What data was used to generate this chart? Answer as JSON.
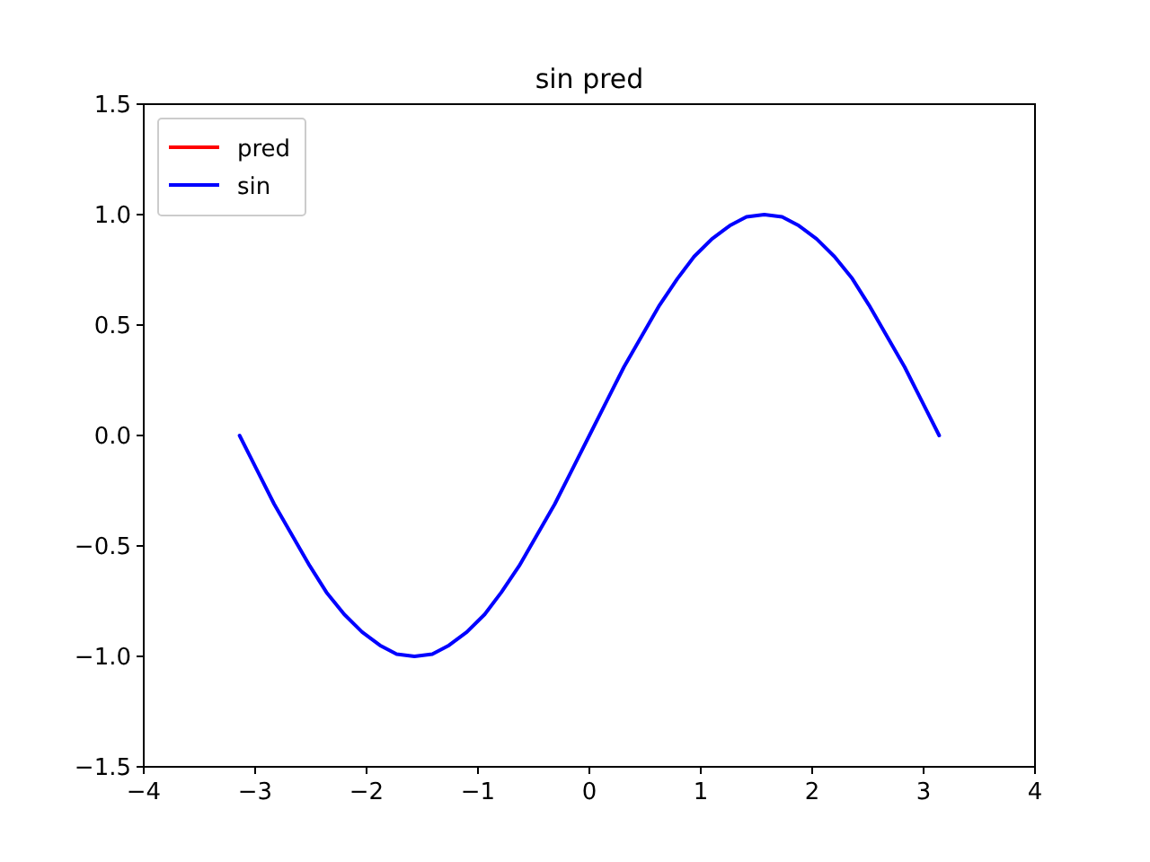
{
  "chart_data": {
    "type": "line",
    "title": "sin pred",
    "x": [
      -3.14,
      -2.98,
      -2.83,
      -2.67,
      -2.51,
      -2.36,
      -2.2,
      -2.04,
      -1.88,
      -1.73,
      -1.57,
      -1.41,
      -1.26,
      -1.1,
      -0.94,
      -0.79,
      -0.63,
      -0.47,
      -0.31,
      -0.16,
      0,
      0.16,
      0.31,
      0.47,
      0.63,
      0.79,
      0.94,
      1.1,
      1.26,
      1.41,
      1.57,
      1.73,
      1.88,
      2.04,
      2.2,
      2.36,
      2.51,
      2.67,
      2.83,
      2.98,
      3.14
    ],
    "series": [
      {
        "name": "pred",
        "color": "#ff0000",
        "values": [
          null,
          null,
          null,
          null,
          null,
          null,
          null,
          null,
          null,
          null,
          null,
          null,
          null,
          null,
          null,
          null,
          null,
          null,
          null,
          null,
          null,
          null,
          null,
          null,
          null,
          null,
          null,
          null,
          null,
          null,
          null,
          null,
          null,
          null,
          null,
          null,
          null,
          null,
          null,
          null,
          null
        ]
      },
      {
        "name": "sin",
        "color": "#0000ff",
        "values": [
          0,
          -0.16,
          -0.31,
          -0.45,
          -0.59,
          -0.71,
          -0.81,
          -0.89,
          -0.95,
          -0.99,
          -1,
          -0.99,
          -0.95,
          -0.89,
          -0.81,
          -0.71,
          -0.59,
          -0.45,
          -0.31,
          -0.16,
          0,
          0.16,
          0.31,
          0.45,
          0.59,
          0.71,
          0.81,
          0.89,
          0.95,
          0.99,
          1,
          0.99,
          0.95,
          0.89,
          0.81,
          0.71,
          0.59,
          0.45,
          0.31,
          0.16,
          0
        ]
      }
    ],
    "xlim": [
      -4,
      4
    ],
    "xticks": [
      {
        "value": -4,
        "label": "−4"
      },
      {
        "value": -3,
        "label": "−3"
      },
      {
        "value": -2,
        "label": "−2"
      },
      {
        "value": -1,
        "label": "−1"
      },
      0,
      1,
      2,
      3,
      4
    ],
    "ylim": [
      -1.5,
      1.5
    ],
    "yticks": [
      {
        "value": -1.5,
        "label": "−1.5"
      },
      {
        "value": -1,
        "label": "−1.0"
      },
      {
        "value": -0.5,
        "label": "−0.5"
      },
      {
        "value": 0,
        "label": "0.0"
      },
      0.5,
      {
        "value": 1,
        "label": "1.0"
      },
      1.5
    ],
    "legend": "top left",
    "grid": false,
    "line_style": "solid",
    "marker": "none"
  }
}
